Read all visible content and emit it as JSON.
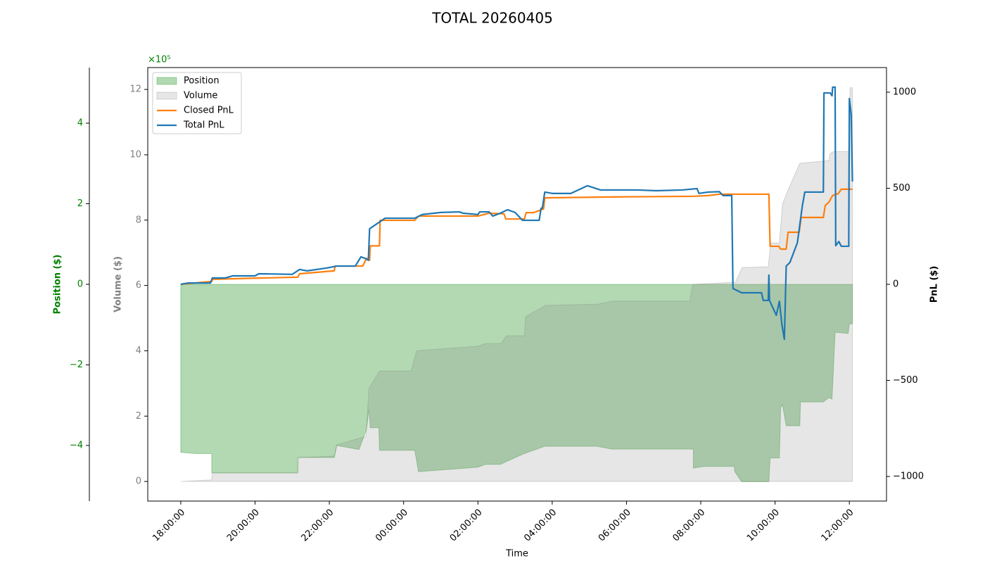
{
  "chart_data": {
    "type": "combo",
    "title": "TOTAL 20260405",
    "xlabel": "Time",
    "xlim": [
      "17:06:40",
      "13:00:00"
    ],
    "xticks": [
      "18:00:00",
      "20:00:00",
      "22:00:00",
      "00:00:00",
      "02:00:00",
      "04:00:00",
      "06:00:00",
      "08:00:00",
      "10:00:00",
      "12:00:00"
    ],
    "legend": "upper left",
    "axes": {
      "position": {
        "label": "Position ($)",
        "offset_label": "×10⁵",
        "color": "#008000",
        "ylim": [
          -5.38,
          5.38
        ],
        "yticks": [
          {
            "value": -4,
            "label": "−4"
          },
          {
            "value": -2,
            "label": "−2"
          },
          0,
          2,
          4
        ]
      },
      "volume": {
        "label": "Volume ($)",
        "color": "#808080",
        "ylim": [
          -0.6,
          12.67
        ],
        "yticks": [
          0,
          2,
          4,
          6,
          8,
          10,
          12
        ]
      },
      "pnl": {
        "label": "PnL ($)",
        "color": "#000000",
        "ylim": [
          -1128,
          1128
        ],
        "yticks": [
          {
            "value": -1000,
            "label": "−1000"
          },
          {
            "value": -500,
            "label": "−500"
          },
          0,
          500,
          1000
        ]
      }
    },
    "series": [
      {
        "name": "Position",
        "type": "area",
        "axis": "position",
        "color": "#008000",
        "x": [
          "18:00:00",
          "18:24:00",
          "18:50:00",
          "18:50:00",
          "21:09:00",
          "21:09:00",
          "22:08:00",
          "22:12:00",
          "22:48:00",
          "23:00:00",
          "23:04:00",
          "23:06:00",
          "23:20:00",
          "23:21:00",
          "00:18:00",
          "00:24:00",
          "02:00:00",
          "02:12:00",
          "02:36:00",
          "03:15:00",
          "03:48:00",
          "05:12:00",
          "05:36:00",
          "07:48:00",
          "07:48:00",
          "08:06:00",
          "08:54:00",
          "08:55:00",
          "09:06:00",
          "09:50:00",
          "09:52:00",
          "10:07:00",
          "10:09:00",
          "10:12:00",
          "10:18:00",
          "10:40:00",
          "10:41:00",
          "11:18:00",
          "11:27:00",
          "11:32:00",
          "11:37:00",
          "11:58:00",
          "12:00:00",
          "12:05:00"
        ],
        "values": [
          -4.17,
          -4.2,
          -4.2,
          -4.68,
          -4.68,
          -4.3,
          -4.3,
          -4.0,
          -4.1,
          -3.6,
          -3.1,
          -3.56,
          -3.56,
          -4.12,
          -4.12,
          -4.65,
          -4.54,
          -4.47,
          -4.47,
          -4.2,
          -4.02,
          -4.02,
          -4.09,
          -4.09,
          -4.56,
          -4.52,
          -4.52,
          -4.65,
          -4.9,
          -4.9,
          -4.31,
          -4.31,
          -3.07,
          -2.99,
          -3.51,
          -3.51,
          -2.92,
          -2.92,
          -2.81,
          -2.85,
          -1.19,
          -1.22,
          -0.98,
          -0.98
        ]
      },
      {
        "name": "Volume",
        "type": "area",
        "axis": "volume",
        "color": "#808080",
        "x": [
          "18:00:00",
          "18:50:00",
          "18:51:00",
          "21:09:00",
          "21:10:00",
          "22:08:00",
          "22:12:00",
          "22:59:00",
          "23:04:00",
          "23:21:00",
          "00:12:00",
          "00:21:00",
          "02:00:00",
          "02:12:00",
          "02:37:00",
          "02:46:00",
          "03:15:00",
          "03:17:00",
          "03:49:00",
          "05:14:00",
          "05:37:00",
          "07:42:00",
          "07:47:00",
          "08:05:00",
          "08:56:00",
          "09:07:00",
          "09:49:00",
          "09:53:00",
          "10:07:00",
          "10:12:00",
          "10:21:00",
          "10:40:00",
          "11:27:00",
          "11:29:00",
          "11:35:00",
          "12:00:00",
          "12:01:00",
          "12:05:00"
        ],
        "values": [
          0,
          0.05,
          0.26,
          0.26,
          0.73,
          0.78,
          1.12,
          1.38,
          2.84,
          3.38,
          3.38,
          4.0,
          4.14,
          4.22,
          4.22,
          4.46,
          4.46,
          5.04,
          5.39,
          5.43,
          5.52,
          5.52,
          6.03,
          6.05,
          6.1,
          6.55,
          6.57,
          7.3,
          7.3,
          8.49,
          8.92,
          9.74,
          9.82,
          10.04,
          10.1,
          10.1,
          12.05,
          12.05
        ]
      },
      {
        "name": "Closed PnL",
        "type": "line",
        "axis": "pnl",
        "color": "#ff7f0e",
        "x": [
          "18:00:00",
          "18:50:00",
          "18:51:00",
          "20:12:00",
          "21:09:00",
          "21:12:00",
          "22:08:00",
          "22:09:00",
          "22:54:00",
          "23:00:00",
          "23:05:00",
          "23:06:00",
          "23:21:00",
          "23:22:00",
          "00:18:00",
          "00:24:00",
          "02:00:00",
          "02:18:00",
          "02:42:00",
          "02:45:00",
          "03:15:00",
          "03:18:00",
          "03:30:00",
          "03:46:00",
          "03:48:00",
          "05:48:00",
          "07:48:00",
          "08:12:00",
          "08:30:00",
          "09:50:00",
          "09:52:00",
          "10:06:00",
          "10:09:00",
          "10:18:00",
          "10:21:00",
          "10:39:00",
          "10:42:00",
          "11:18:00",
          "11:21:00",
          "11:27:00",
          "11:33:00",
          "11:42:00",
          "11:47:00",
          "12:05:00"
        ],
        "values": [
          0,
          15,
          26,
          33,
          37,
          55,
          70,
          95,
          95,
          135,
          125,
          200,
          200,
          333,
          333,
          355,
          355,
          370,
          367,
          340,
          340,
          373,
          373,
          392,
          450,
          455,
          458,
          462,
          469,
          469,
          198,
          198,
          183,
          183,
          271,
          271,
          348,
          348,
          410,
          428,
          462,
          472,
          495,
          495
        ]
      },
      {
        "name": "Total PnL",
        "type": "line",
        "axis": "pnl",
        "color": "#1f77b4",
        "x": [
          "18:00:00",
          "18:12:00",
          "18:48:00",
          "18:51:00",
          "19:12:00",
          "19:24:00",
          "20:00:00",
          "20:06:00",
          "21:00:00",
          "21:12:00",
          "21:24:00",
          "21:54:00",
          "22:12:00",
          "22:42:00",
          "22:51:00",
          "23:00:00",
          "23:03:00",
          "23:05:00",
          "23:30:00",
          "00:18:00",
          "00:30:00",
          "01:00:00",
          "01:30:00",
          "01:36:00",
          "02:00:00",
          "02:03:00",
          "02:18:00",
          "02:24:00",
          "02:36:00",
          "02:48:00",
          "03:00:00",
          "03:12:00",
          "03:39:00",
          "03:42:00",
          "03:44:00",
          "03:48:00",
          "04:00:00",
          "04:30:00",
          "04:57:00",
          "05:18:00",
          "06:18:00",
          "06:48:00",
          "07:30:00",
          "07:54:00",
          "07:57:00",
          "08:12:00",
          "08:30:00",
          "08:36:00",
          "08:50:00",
          "08:52:00",
          "09:06:00",
          "09:38:00",
          "09:41:00",
          "09:49:00",
          "09:50:00",
          "09:51:00",
          "10:02:00",
          "10:07:00",
          "10:11:00",
          "10:15:00",
          "10:18:00",
          "10:24:00",
          "10:36:00",
          "10:44:00",
          "10:48:00",
          "11:18:00",
          "11:19:00",
          "11:29:00",
          "11:32:00",
          "11:33:00",
          "11:37:00",
          "11:38:00",
          "11:43:00",
          "11:47:00",
          "11:59:00",
          "12:00:00",
          "12:03:00",
          "12:05:00"
        ],
        "values": [
          0,
          7,
          7,
          33,
          33,
          44,
          44,
          55,
          52,
          77,
          70,
          84,
          95,
          95,
          143,
          132,
          125,
          289,
          344,
          344,
          363,
          374,
          377,
          370,
          363,
          377,
          377,
          355,
          370,
          388,
          374,
          333,
          333,
          396,
          396,
          480,
          473,
          473,
          513,
          491,
          491,
          487,
          491,
          498,
          473,
          480,
          482,
          462,
          462,
          -22,
          -44,
          -44,
          -84,
          -84,
          48,
          -84,
          -161,
          -88,
          -209,
          -286,
          95,
          114,
          216,
          407,
          480,
          480,
          996,
          996,
          981,
          1026,
          1026,
          201,
          223,
          198,
          198,
          967,
          886,
          535
        ]
      }
    ]
  }
}
